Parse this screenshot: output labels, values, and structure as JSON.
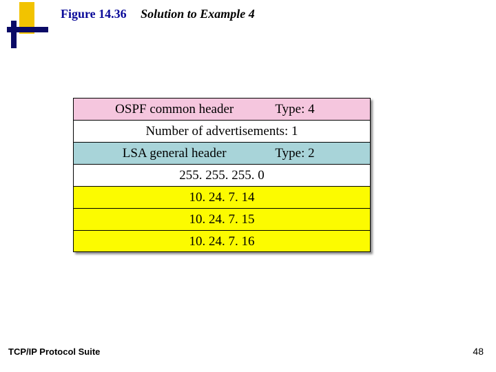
{
  "figure": {
    "label": "Figure 14.36",
    "caption": "Solution to Example 4"
  },
  "table": {
    "colors": {
      "pink": "#f5c6de",
      "white": "#ffffff",
      "blue": "#a8d4d9",
      "yellow": "#fcfb00",
      "border": "#000000"
    },
    "rows": [
      {
        "bg": "pink",
        "layout": "split",
        "left": "OSPF common header",
        "right": "Type: 4"
      },
      {
        "bg": "white",
        "layout": "single",
        "text": "Number of advertisements: 1"
      },
      {
        "bg": "blue",
        "layout": "split",
        "left": "LSA general header",
        "right": "Type: 2"
      },
      {
        "bg": "white",
        "layout": "single",
        "text": "255. 255. 255. 0"
      },
      {
        "bg": "yellow",
        "layout": "single",
        "text": "10. 24. 7. 14"
      },
      {
        "bg": "yellow",
        "layout": "single",
        "text": "10. 24. 7. 15"
      },
      {
        "bg": "yellow",
        "layout": "single",
        "text": "10. 24. 7. 16"
      }
    ]
  },
  "footer": {
    "left": "TCP/IP Protocol Suite",
    "page": "48"
  }
}
